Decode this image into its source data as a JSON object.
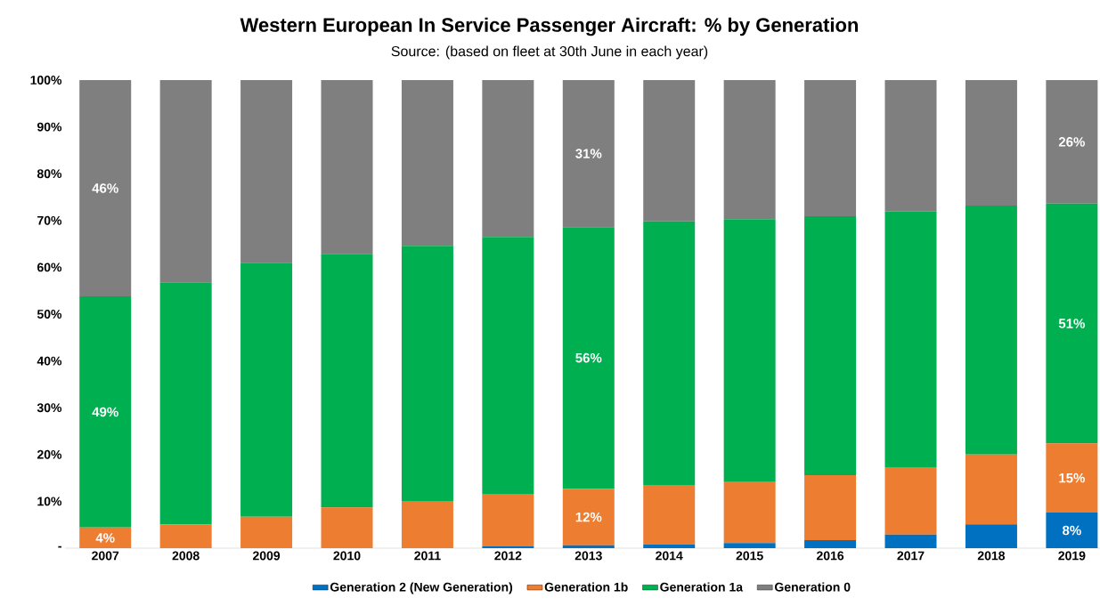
{
  "chart_data": {
    "type": "bar",
    "stacked": true,
    "title": "Western European In Service Passenger Aircraft: % by Generation",
    "subtitle": "Source: (based on fleet at 30th June in each year)",
    "categories": [
      "2007",
      "2008",
      "2009",
      "2010",
      "2011",
      "2012",
      "2013",
      "2014",
      "2015",
      "2016",
      "2017",
      "2018",
      "2019"
    ],
    "series": [
      {
        "name": "Generation 2 (New Generation)",
        "color": "#0070c0",
        "values": [
          0,
          0,
          0,
          0,
          0,
          0.4,
          0.6,
          0.8,
          1.1,
          1.7,
          2.9,
          5.1,
          7.6
        ],
        "value_labels": [
          null,
          null,
          null,
          null,
          null,
          null,
          null,
          null,
          null,
          null,
          null,
          null,
          "8%"
        ]
      },
      {
        "name": "Generation 1b",
        "color": "#ed7d31",
        "values": [
          4.4,
          5.1,
          6.7,
          8.7,
          10.1,
          11.2,
          12.1,
          12.7,
          13.0,
          13.9,
          14.4,
          14.9,
          14.8
        ],
        "value_labels": [
          "4%",
          null,
          null,
          null,
          null,
          null,
          "12%",
          null,
          null,
          null,
          null,
          null,
          "15%"
        ]
      },
      {
        "name": "Generation 1a",
        "color": "#00b050",
        "values": [
          49.4,
          51.7,
          54.3,
          54.2,
          54.5,
          54.9,
          55.9,
          56.3,
          56.2,
          55.3,
          54.6,
          53.2,
          51.2
        ],
        "value_labels": [
          "49%",
          null,
          null,
          null,
          null,
          null,
          "56%",
          null,
          null,
          null,
          null,
          null,
          "51%"
        ]
      },
      {
        "name": "Generation 0",
        "color": "#7f7f7f",
        "values": [
          46.2,
          43.2,
          39.0,
          37.1,
          35.4,
          33.5,
          31.4,
          30.2,
          29.7,
          29.1,
          28.1,
          26.8,
          26.4
        ],
        "value_labels": [
          "46%",
          null,
          null,
          null,
          null,
          null,
          "31%",
          null,
          null,
          null,
          null,
          null,
          "26%"
        ]
      }
    ],
    "ylim": [
      0,
      100
    ],
    "yticks": [
      {
        "value": 0,
        "label": "-"
      },
      {
        "value": 10,
        "label": "10%"
      },
      {
        "value": 20,
        "label": "20%"
      },
      {
        "value": 30,
        "label": "30%"
      },
      {
        "value": 40,
        "label": "40%"
      },
      {
        "value": 50,
        "label": "50%"
      },
      {
        "value": 60,
        "label": "60%"
      },
      {
        "value": 70,
        "label": "70%"
      },
      {
        "value": 80,
        "label": "80%"
      },
      {
        "value": 90,
        "label": "90%"
      },
      {
        "value": 100,
        "label": "100%"
      }
    ],
    "legend": "bottom"
  }
}
